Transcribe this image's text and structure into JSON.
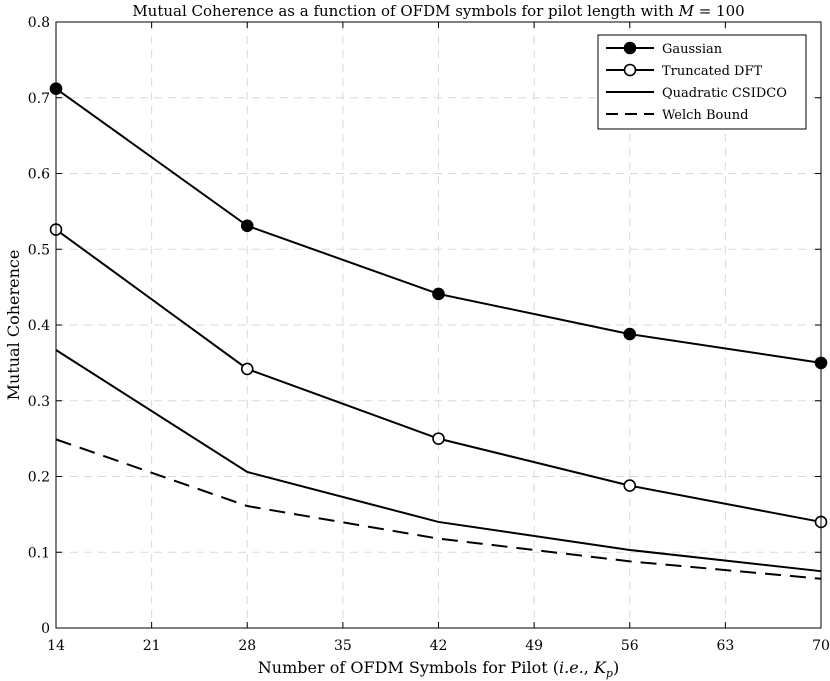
{
  "chart_data": {
    "type": "line",
    "title": "Mutual Coherence as a function of OFDM symbols for pilot length with M = 100",
    "title_parts": {
      "prefix": "Mutual Coherence as a function of OFDM symbols for pilot length with ",
      "math_var": "M",
      "math_rest": " = 100"
    },
    "xlabel": "Number of OFDM Symbols for Pilot (i.e., Kp)",
    "xlabel_parts": {
      "prefix": "Number of OFDM Symbols for Pilot (",
      "ie": "i.e.",
      "sep": ", ",
      "var": "K",
      "sub": "p",
      "suffix": ")"
    },
    "ylabel": "Mutual Coherence",
    "xlim": [
      14,
      70
    ],
    "ylim": [
      0,
      0.8
    ],
    "xticks": [
      14,
      21,
      28,
      35,
      42,
      49,
      56,
      63,
      70
    ],
    "yticks": [
      0,
      0.1,
      0.2,
      0.3,
      0.4,
      0.5,
      0.6,
      0.7,
      0.8
    ],
    "ytick_labels": [
      "0",
      "0.1",
      "0.2",
      "0.3",
      "0.4",
      "0.5",
      "0.6",
      "0.7",
      "0.8"
    ],
    "grid": true,
    "legend_position": "top-right",
    "x": [
      14,
      28,
      42,
      56,
      70
    ],
    "series": [
      {
        "name": "Gaussian",
        "values": [
          0.712,
          0.531,
          0.441,
          0.388,
          0.35
        ],
        "marker": "filled-circle",
        "line": "solid"
      },
      {
        "name": "Truncated DFT",
        "values": [
          0.526,
          0.342,
          0.25,
          0.188,
          0.14
        ],
        "marker": "open-circle",
        "line": "solid"
      },
      {
        "name": "Quadratic CSIDCO",
        "values": [
          0.367,
          0.206,
          0.14,
          0.103,
          0.075
        ],
        "marker": "none",
        "line": "solid"
      },
      {
        "name": "Welch Bound",
        "values": [
          0.249,
          0.161,
          0.118,
          0.088,
          0.065
        ],
        "marker": "none",
        "line": "dashed"
      }
    ]
  }
}
